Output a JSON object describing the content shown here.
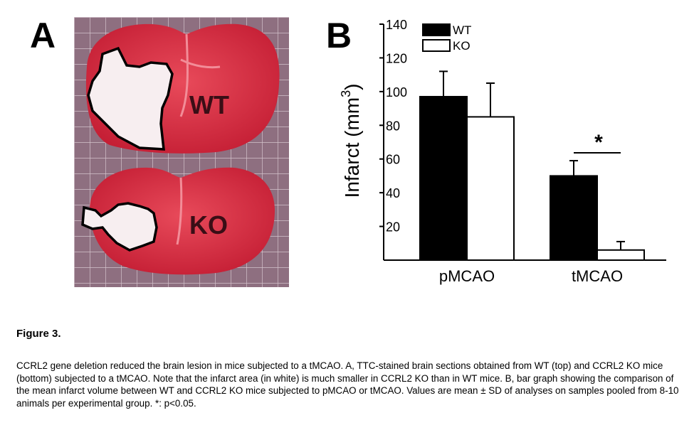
{
  "panels": {
    "a_label": "A",
    "b_label": "B"
  },
  "photo": {
    "top_label": "WT",
    "bottom_label": "KO"
  },
  "chart_data": {
    "type": "bar",
    "categories": [
      "pMCAO",
      "tMCAO"
    ],
    "series": [
      {
        "name": "WT",
        "values": [
          97,
          50
        ],
        "errors": [
          15,
          9
        ],
        "color": "#000000"
      },
      {
        "name": "KO",
        "values": [
          85,
          6
        ],
        "errors": [
          20,
          5
        ],
        "color": "#ffffff"
      }
    ],
    "ylabel": "Infarct (mm3)",
    "ylim": [
      0,
      140
    ],
    "yticks": [
      20,
      40,
      60,
      80,
      100,
      120,
      140
    ],
    "significance": {
      "category": "tMCAO",
      "label": "*"
    },
    "legend": "top-left",
    "grid": false
  },
  "figure": {
    "title": "Figure 3.",
    "caption": "CCRL2 gene deletion reduced the brain lesion in mice subjected to a tMCAO. A, TTC-stained brain sections obtained from WT (top) and CCRL2 KO mice (bottom) subjected to a tMCAO. Note that the infarct area (in white) is much smaller in CCRL2 KO than in WT mice. B, bar graph showing the comparison of the mean infarct volume between WT and CCRL2 KO mice subjected to pMCAO or tMCAO. Values are mean ± SD of analyses on samples pooled from 8-10 animals per experimental group. *: p<0.05."
  }
}
